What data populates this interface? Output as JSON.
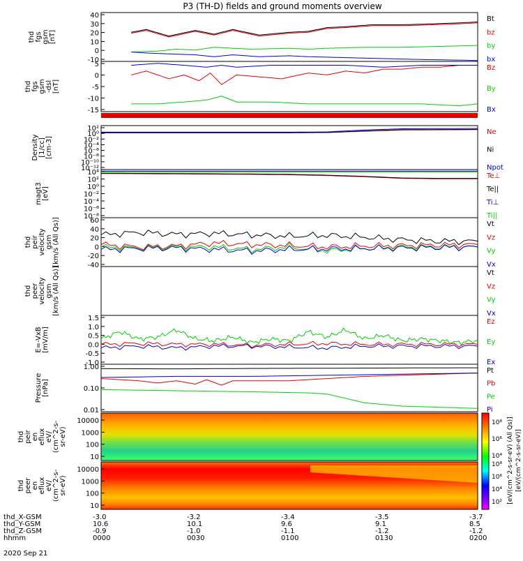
{
  "title": "P3 (TH-D) fields and ground moments overview",
  "date_label": "2020 Sep 21",
  "footer": {
    "row_labels": [
      "thd_X-GSM",
      "thd_Y-GSM",
      "thd_Z-GSM",
      "hhmm"
    ],
    "columns": [
      {
        "x": "-3.0",
        "y": "10.6",
        "z": "-0.9",
        "t": "0000"
      },
      {
        "x": "-3.2",
        "y": "10.1",
        "z": "-1.0",
        "t": "0030"
      },
      {
        "x": "-3.4",
        "y": "9.6",
        "z": "-1.1",
        "t": "0100"
      },
      {
        "x": "-3.5",
        "y": "9.1",
        "z": "-1.2",
        "t": "0130"
      },
      {
        "x": "-3.7",
        "y": "8.5",
        "z": "-1.2",
        "t": "0200"
      }
    ]
  },
  "chart_data": [
    {
      "type": "line",
      "id": "fgs_gsm",
      "ylabel": [
        "thd",
        "fgs",
        "gsm",
        "[nT]"
      ],
      "ylim": [
        -10,
        42
      ],
      "yticks": [
        "40",
        "30",
        "20",
        "10",
        "0",
        "-10"
      ],
      "series": [
        {
          "name": "Bt",
          "color": "#000000",
          "x": [
            0.08,
            0.12,
            0.18,
            0.25,
            0.3,
            0.35,
            0.42,
            0.5,
            0.55,
            0.6,
            0.65,
            0.72,
            0.8,
            0.88,
            0.95,
            1.0
          ],
          "values": [
            21,
            24,
            17,
            23,
            19,
            24,
            18,
            21,
            22,
            26,
            27,
            29,
            29,
            30,
            31,
            32
          ]
        },
        {
          "name": "bz",
          "color": "#e00000",
          "x": [
            0.08,
            0.12,
            0.18,
            0.25,
            0.3,
            0.35,
            0.42,
            0.5,
            0.55,
            0.6,
            0.65,
            0.72,
            0.8,
            0.88,
            0.95,
            1.0
          ],
          "values": [
            20,
            23,
            16,
            22,
            18,
            23,
            17,
            20,
            21,
            25,
            26,
            28,
            28,
            29,
            30,
            31
          ]
        },
        {
          "name": "by",
          "color": "#00cc00",
          "x": [
            0.08,
            0.15,
            0.2,
            0.25,
            0.3,
            0.4,
            0.5,
            0.55,
            0.6,
            0.7,
            0.8,
            0.9,
            1.0
          ],
          "values": [
            0,
            1,
            3,
            2,
            5,
            3,
            4,
            3,
            4,
            5,
            5,
            6,
            7
          ]
        },
        {
          "name": "bx",
          "color": "#0000cc",
          "x": [
            0.08,
            0.12,
            0.18,
            0.25,
            0.3,
            0.35,
            0.42,
            0.5,
            0.55,
            0.65,
            0.75,
            0.85,
            1.0
          ],
          "values": [
            0,
            -1,
            -2,
            -3,
            -5,
            -3,
            -5,
            -4,
            -5,
            -6,
            -7,
            -8,
            -9
          ]
        }
      ]
    },
    {
      "type": "line",
      "id": "fgs_gsm_dsl",
      "ylabel": [
        "thd",
        "fgs",
        "gsm",
        "-dsl",
        "[nT]"
      ],
      "ylim": [
        -18,
        8
      ],
      "yticks": [
        "5",
        "0",
        "-5",
        "-10",
        "-15"
      ],
      "series": [
        {
          "name": "Bz",
          "color": "#e00000",
          "x": [
            0.08,
            0.12,
            0.18,
            0.22,
            0.26,
            0.29,
            0.32,
            0.36,
            0.42,
            0.48,
            0.55,
            0.6,
            0.65,
            0.7,
            0.75,
            0.8,
            0.85,
            0.9,
            0.95,
            1.0
          ],
          "values": [
            1,
            3,
            -1,
            1,
            -2,
            2,
            -4,
            1,
            0,
            -1,
            2,
            1,
            3,
            2,
            4,
            4,
            5,
            5,
            6,
            6
          ]
        },
        {
          "name": "By",
          "color": "#00cc00",
          "x": [
            0.08,
            0.15,
            0.22,
            0.28,
            0.32,
            0.36,
            0.45,
            0.55,
            0.65,
            0.75,
            0.85,
            0.95,
            1.0
          ],
          "values": [
            -14,
            -14,
            -13,
            -12,
            -10,
            -13,
            -13,
            -14,
            -14,
            -14,
            -14,
            -15,
            -14
          ]
        },
        {
          "name": "Bx",
          "color": "#0000cc",
          "x": [
            0.08,
            0.15,
            0.22,
            0.28,
            0.32,
            0.36,
            0.45,
            0.55,
            0.65,
            0.75,
            0.85,
            0.95,
            1.0
          ],
          "values": [
            6,
            7,
            6,
            5,
            6,
            5,
            6,
            6,
            6,
            5,
            6,
            6,
            6
          ]
        }
      ]
    },
    {
      "type": "line",
      "id": "density",
      "log": true,
      "ylabel": [
        "Density",
        "[1/cc]",
        "[cm-3]"
      ],
      "ylim": [
        -12,
        2
      ],
      "yticks": [
        "10²",
        "10⁰",
        "10⁻²",
        "10⁻⁴",
        "10⁻⁶",
        "10⁻⁸",
        "10⁻¹⁰",
        "10⁻¹²"
      ],
      "series": [
        {
          "name": "Ne",
          "color": "#e00000",
          "x": [
            0.0,
            0.5,
            0.6,
            0.7,
            0.8,
            1.0
          ],
          "values": [
            -0.2,
            -0.2,
            -0.2,
            0.2,
            0.6,
            0.7
          ]
        },
        {
          "name": "Ni",
          "color": "#000000",
          "x": [
            0.0,
            0.5,
            0.6,
            0.7,
            0.8,
            1.0
          ],
          "values": [
            -0.3,
            -0.3,
            -0.2,
            0.3,
            0.7,
            0.8
          ]
        },
        {
          "name": "Npot",
          "color": "#0000cc",
          "x": [
            0.0,
            0.5,
            0.6,
            0.7,
            0.8,
            1.0
          ],
          "values": [
            -0.1,
            -0.1,
            0.0,
            0.6,
            1.0,
            1.1
          ]
        }
      ]
    },
    {
      "type": "line",
      "id": "temp",
      "log": true,
      "ylabel": [
        "magt3",
        "[eV]"
      ],
      "ylim": [
        -8,
        4
      ],
      "yticks": [
        "10⁴",
        "10²",
        "10⁰",
        "10⁻²",
        "10⁻⁴",
        "10⁻⁶",
        "10⁻⁸"
      ],
      "series": [
        {
          "name": "Te⊥",
          "color": "#e00000",
          "x": [
            0.0,
            0.4,
            0.5,
            0.6,
            0.7,
            0.8,
            0.9,
            1.0
          ],
          "values": [
            3.0,
            2.8,
            2.7,
            2.5,
            2.2,
            1.8,
            1.7,
            1.7
          ]
        },
        {
          "name": "Te||",
          "color": "#000000",
          "x": [
            0.0,
            0.4,
            0.5,
            0.6,
            0.7,
            0.8,
            0.9,
            1.0
          ],
          "values": [
            3.1,
            2.9,
            2.8,
            2.6,
            2.3,
            1.9,
            1.8,
            1.8
          ]
        },
        {
          "name": "Ti⊥",
          "color": "#0000cc",
          "x": [
            0.0,
            1.0
          ],
          "values": [
            3.6,
            3.6
          ]
        },
        {
          "name": "Ti||",
          "color": "#00cc00",
          "x": [
            0.0,
            1.0
          ],
          "values": [
            3.4,
            3.4
          ]
        }
      ]
    },
    {
      "type": "line",
      "id": "peir_velocity",
      "ylabel": [
        "thd",
        "peir",
        "velocity",
        "gsm",
        "[km/s (All Qs)]"
      ],
      "ylim": [
        -40,
        60
      ],
      "yticks": [
        "60",
        "40",
        "20",
        "0",
        "-20",
        "-40"
      ],
      "series": [
        {
          "name": "Vt",
          "color": "#000000",
          "x": [
            0.0,
            0.1,
            0.2,
            0.3,
            0.4,
            0.5,
            0.6,
            0.7,
            0.8,
            0.9,
            1.0
          ],
          "values": [
            25,
            30,
            26,
            28,
            25,
            22,
            24,
            20,
            15,
            12,
            12
          ]
        },
        {
          "name": "Vz",
          "color": "#e00000",
          "x": [
            0.0,
            0.1,
            0.2,
            0.3,
            0.4,
            0.5,
            0.6,
            0.7,
            0.8,
            0.9,
            1.0
          ],
          "values": [
            5,
            0,
            2,
            8,
            5,
            3,
            0,
            2,
            3,
            4,
            5
          ]
        },
        {
          "name": "Vy",
          "color": "#00cc00",
          "x": [
            0.0,
            0.1,
            0.2,
            0.3,
            0.4,
            0.5,
            0.6,
            0.7,
            0.8,
            0.9,
            1.0
          ],
          "values": [
            0,
            -2,
            0,
            0,
            -5,
            0,
            -8,
            -3,
            0,
            0,
            0
          ]
        },
        {
          "name": "Vx",
          "color": "#0000cc",
          "x": [
            0.0,
            0.1,
            0.2,
            0.3,
            0.4,
            0.5,
            0.6,
            0.7,
            0.8,
            0.9,
            1.0
          ],
          "values": [
            -5,
            -3,
            -2,
            -5,
            -8,
            -5,
            -4,
            -3,
            -2,
            -1,
            0
          ]
        }
      ]
    },
    {
      "type": "line",
      "id": "peer_velocity",
      "ylabel": [
        "thd",
        "peer",
        "velocity",
        "gsm",
        "[km/s (All Qs)]"
      ],
      "series_labels": [
        {
          "name": "Vt",
          "color": "#000000"
        },
        {
          "name": "Vz",
          "color": "#e00000"
        },
        {
          "name": "Vy",
          "color": "#00cc00"
        },
        {
          "name": "Vx",
          "color": "#0000cc"
        }
      ]
    },
    {
      "type": "line",
      "id": "efield",
      "ylabel": [
        "E=-VxB",
        "[mV/m]"
      ],
      "ylim": [
        -1.1,
        1.6
      ],
      "yticks": [
        "1.5",
        "1.0",
        "0.5",
        "0.0",
        "-0.5",
        "-1.0"
      ],
      "series": [
        {
          "name": "Ez",
          "color": "#e00000",
          "x": [
            0.0,
            0.1,
            0.2,
            0.3,
            0.4,
            0.5,
            0.6,
            0.7,
            0.8,
            0.9,
            1.0
          ],
          "values": [
            0.0,
            0.05,
            0.0,
            0.0,
            -0.05,
            0.0,
            0.05,
            0.0,
            0.0,
            0.0,
            0.0
          ]
        },
        {
          "name": "Ey",
          "color": "#00cc00",
          "x": [
            0.0,
            0.05,
            0.1,
            0.15,
            0.2,
            0.25,
            0.3,
            0.35,
            0.4,
            0.45,
            0.5,
            0.55,
            0.6,
            0.65,
            0.7,
            0.75,
            0.8,
            0.85,
            0.9,
            0.95,
            1.0
          ],
          "values": [
            0.3,
            0.7,
            0.3,
            0.4,
            0.8,
            0.3,
            0.2,
            0.4,
            0.1,
            0.3,
            0.2,
            0.7,
            0.4,
            0.8,
            0.3,
            0.5,
            0.2,
            0.3,
            0.2,
            0.1,
            0.2
          ]
        },
        {
          "name": "Ex",
          "color": "#0000cc",
          "x": [
            0.0,
            0.1,
            0.2,
            0.3,
            0.4,
            0.5,
            0.6,
            0.7,
            0.8,
            0.9,
            1.0
          ],
          "values": [
            -0.2,
            -0.1,
            -0.2,
            -0.1,
            -0.1,
            -0.15,
            -0.2,
            -0.1,
            -0.1,
            -0.1,
            -0.1
          ]
        }
      ]
    },
    {
      "type": "line",
      "id": "pressure",
      "log": true,
      "ylabel": [
        "Pressure",
        "[nPa]"
      ],
      "ylim": [
        -2,
        0.15
      ],
      "yticks": [
        "1.00",
        "0.10",
        "0.01"
      ],
      "series": [
        {
          "name": "Pt",
          "color": "#000000",
          "x": [
            0.0,
            0.2,
            0.4,
            0.6,
            0.8,
            1.0
          ],
          "values": [
            -0.05,
            -0.06,
            -0.04,
            -0.03,
            -0.02,
            -0.01
          ]
        },
        {
          "name": "Pb",
          "color": "#e00000",
          "x": [
            0.0,
            0.1,
            0.15,
            0.2,
            0.25,
            0.28,
            0.32,
            0.35,
            0.4,
            0.5,
            0.6,
            0.7,
            0.8,
            0.9,
            1.0
          ],
          "values": [
            -0.5,
            -0.6,
            -0.7,
            -0.6,
            -0.75,
            -0.55,
            -0.8,
            -0.6,
            -0.6,
            -0.6,
            -0.5,
            -0.4,
            -0.35,
            -0.3,
            -0.25
          ]
        },
        {
          "name": "Pe",
          "color": "#00cc00",
          "x": [
            0.0,
            0.2,
            0.4,
            0.55,
            0.6,
            0.65,
            0.7,
            0.8,
            0.9,
            1.0
          ],
          "values": [
            -1.0,
            -1.05,
            -1.1,
            -1.15,
            -1.2,
            -1.4,
            -1.6,
            -1.75,
            -1.8,
            -1.85
          ]
        },
        {
          "name": "Pi",
          "color": "#0000cc",
          "x": [
            0.0,
            0.2,
            0.4,
            0.6,
            0.8,
            1.0
          ],
          "values": [
            -0.45,
            -0.4,
            -0.4,
            -0.35,
            -0.3,
            -0.25
          ]
        }
      ]
    },
    {
      "type": "heatmap",
      "id": "peir_en_eflux",
      "ylabel": [
        "thd",
        "peir",
        "en",
        "eflux",
        "eV/",
        "(cm^2-s-",
        "sr-eV)"
      ],
      "yticks": [
        "10000",
        "1000",
        "100",
        "10"
      ]
    },
    {
      "type": "heatmap",
      "id": "peer_en_eflux",
      "ylabel": [
        "thd",
        "peer",
        "en",
        "eflux",
        "eV/",
        "(cm^2-s-",
        "sr-eV)"
      ],
      "yticks": [
        "10000",
        "1000",
        "100",
        "10"
      ]
    }
  ],
  "colorbar": {
    "label": "[eV/(cm^2-s-sr-eV)]",
    "sub_label": "[eV/(cm^2-s-sr-eV) (All Qs)]",
    "ticks_top": [
      "10⁸",
      "10⁶",
      "10⁴"
    ],
    "ticks_bottom": [
      "10⁸",
      "10⁶",
      "10⁴",
      "10²"
    ]
  },
  "colors": {
    "red": "#e00000",
    "green": "#00cc00",
    "blue": "#0000cc",
    "black": "#000000"
  }
}
